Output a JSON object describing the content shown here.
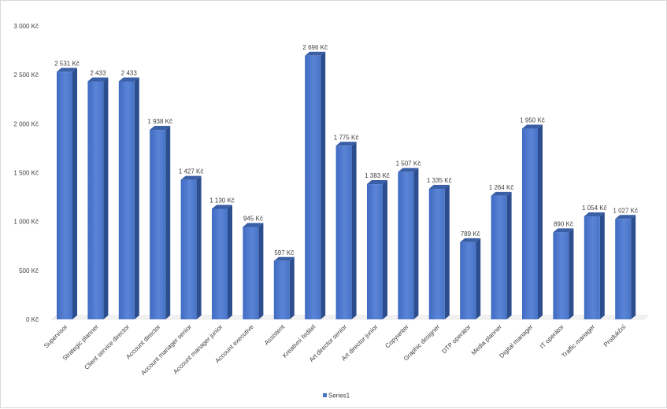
{
  "chart_data": {
    "type": "bar",
    "style": "3d-column",
    "title": "",
    "xlabel": "",
    "ylabel": "",
    "ylim": [
      0,
      3000
    ],
    "yticks": [
      0,
      500,
      1000,
      1500,
      2000,
      2500,
      3000
    ],
    "ytick_labels": [
      "0 Kč",
      "500 Kč",
      "1 000 Kč",
      "1 500 Kč",
      "2 000 Kč",
      "2 500 Kč",
      "3 000 Kč"
    ],
    "grid": false,
    "legend_position": "bottom",
    "categories": [
      "Supervisor",
      "Strategic planner",
      "Client service director",
      "Account director",
      "Account manager senior",
      "Account manager junior",
      "Account executive",
      "Assistent",
      "Kreativní ředitel",
      "Art director senior",
      "Art director junior",
      "Copywriter",
      "Graphic designer",
      "DTP operátor",
      "Media planner",
      "Digital manager",
      "IT operátor",
      "Traffic manager",
      "Produkční"
    ],
    "series": [
      {
        "name": "Series1",
        "color": "#4472c4",
        "values": [
          2531,
          2433,
          2433,
          1938,
          1427,
          1130,
          945,
          597,
          2696,
          1775,
          1383,
          1507,
          1335,
          789,
          1264,
          1950,
          890,
          1054,
          1027
        ],
        "data_labels": [
          "2 531 Kč",
          "2 433",
          "2 433",
          "1 938 Kč",
          "1 427 Kč",
          "1 130 Kč",
          "945 Kč",
          "597 Kč",
          "2 696 Kč",
          "1 775 Kč",
          "1 383 Kč",
          "1 507 Kč",
          "1 335 Kč",
          "789 Kč",
          "1 264 Kč",
          "1 950 Kč",
          "890 Kč",
          "1 054 Kč",
          "1 027 Kč"
        ]
      }
    ]
  }
}
